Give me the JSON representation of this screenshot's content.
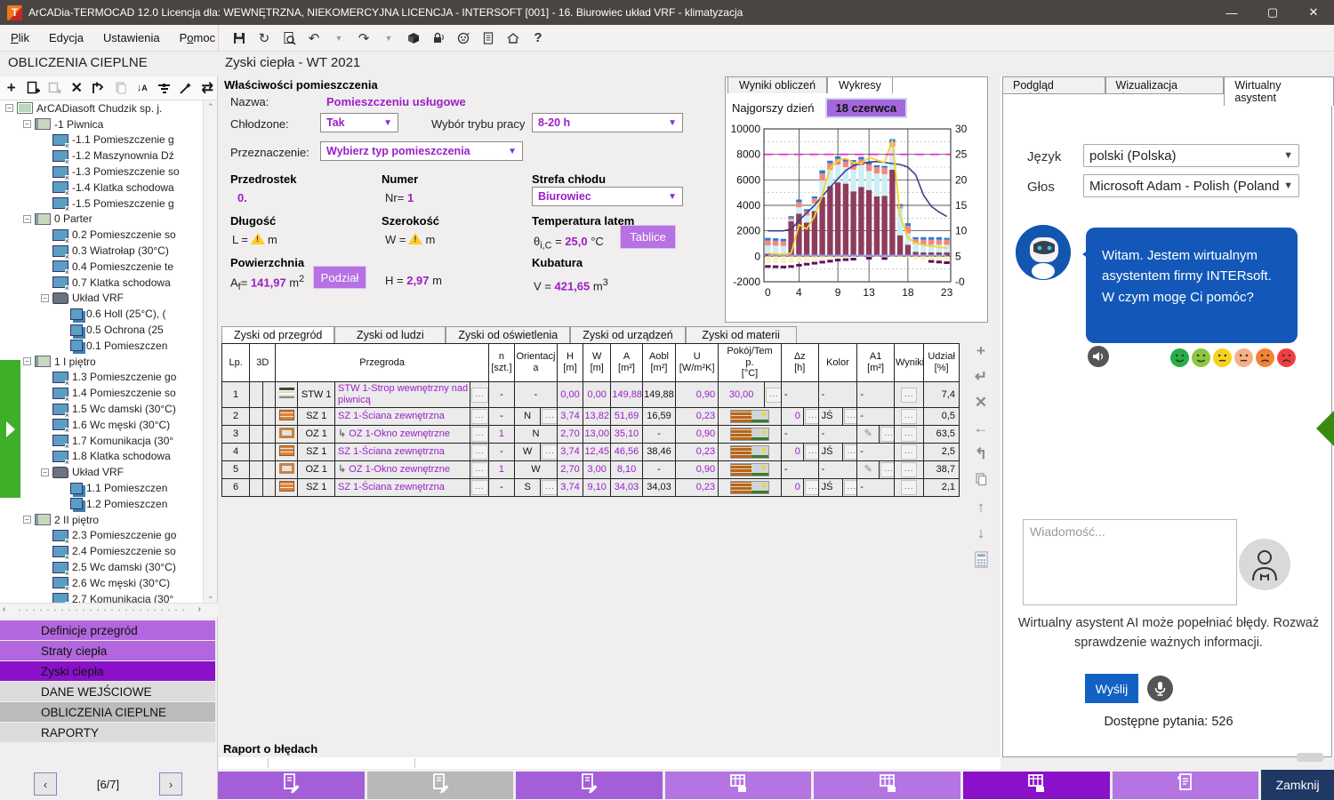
{
  "window": {
    "title": "ArCADia-TERMOCAD 12.0 Licencja dla: WEWNĘTRZNA, NIEKOMERCYJNA LICENCJA - INTERSOFT [001] - 16. Biurowiec układ VRF - klimatyzacja"
  },
  "menubar": [
    {
      "label": "Plik",
      "underline": 0
    },
    {
      "label": "Edycja",
      "underline": null
    },
    {
      "label": "Ustawienia",
      "underline": null
    },
    {
      "label": "Pomoc",
      "underline": 1
    }
  ],
  "main_toolbar": [
    "save-icon",
    "refresh-icon",
    "print-preview-icon",
    "undo-icon",
    "undo-dropdown-icon",
    "redo-icon",
    "redo-dropdown-icon",
    "package-icon",
    "lock-signal-icon",
    "robot-icon",
    "clipboard-icon",
    "home-sync-icon",
    "help-icon"
  ],
  "sidebar": {
    "header": "OBLICZENIA CIEPLNE",
    "tree_toolbar": [
      "add-icon",
      "add-document-icon",
      "add-copy-icon",
      "delete-icon",
      "paste-icon",
      "copy-disabled-icon",
      "sort-icon",
      "levels-icon",
      "wizard-icon",
      "sync-icon"
    ],
    "tree": [
      {
        "d": 0,
        "t": "building",
        "label": "ArCADiasoft Chudzik sp. j.",
        "exp": true
      },
      {
        "d": 1,
        "t": "storey",
        "label": "-1 Piwnica",
        "exp": true
      },
      {
        "d": 2,
        "t": "room",
        "label": "-1.1 Pomieszczenie g"
      },
      {
        "d": 2,
        "t": "room",
        "label": "-1.2 Maszynownia Dź"
      },
      {
        "d": 2,
        "t": "room",
        "label": "-1.3 Pomieszczenie so"
      },
      {
        "d": 2,
        "t": "room",
        "label": "-1.4 Klatka schodowa"
      },
      {
        "d": 2,
        "t": "room",
        "label": "-1.5 Pomieszczenie g"
      },
      {
        "d": 1,
        "t": "storey",
        "label": "0 Parter",
        "exp": true
      },
      {
        "d": 2,
        "t": "room",
        "label": "0.2 Pomieszczenie so"
      },
      {
        "d": 2,
        "t": "room",
        "label": "0.3 Wiatrołap (30°C)"
      },
      {
        "d": 2,
        "t": "room",
        "label": "0.4 Pomieszczenie te"
      },
      {
        "d": 2,
        "t": "room",
        "label": "0.7 Klatka schodowa"
      },
      {
        "d": 2,
        "t": "vrf-group",
        "label": "Układ VRF",
        "exp": true
      },
      {
        "d": 3,
        "t": "vrf-room",
        "label": "0.6 Holl (25°C), ("
      },
      {
        "d": 3,
        "t": "vrf-room",
        "label": "0.5 Ochrona (25"
      },
      {
        "d": 3,
        "t": "vrf-room",
        "label": "0.1 Pomieszczen"
      },
      {
        "d": 1,
        "t": "storey",
        "label": "1 I piętro",
        "exp": true
      },
      {
        "d": 2,
        "t": "room",
        "label": "1.3 Pomieszczenie go"
      },
      {
        "d": 2,
        "t": "room",
        "label": "1.4 Pomieszczenie so"
      },
      {
        "d": 2,
        "t": "room",
        "label": "1.5 Wc damski (30°C)"
      },
      {
        "d": 2,
        "t": "room",
        "label": "1.6 Wc męski (30°C)"
      },
      {
        "d": 2,
        "t": "room",
        "label": "1.7 Komunikacja (30°"
      },
      {
        "d": 2,
        "t": "room",
        "label": "1.8 Klatka schodowa"
      },
      {
        "d": 2,
        "t": "vrf-group",
        "label": "Układ VRF",
        "exp": true
      },
      {
        "d": 3,
        "t": "vrf-room",
        "label": "1.1 Pomieszczen"
      },
      {
        "d": 3,
        "t": "vrf-room",
        "label": "1.2 Pomieszczen"
      },
      {
        "d": 1,
        "t": "storey",
        "label": "2 II piętro",
        "exp": true
      },
      {
        "d": 2,
        "t": "room",
        "label": "2.3 Pomieszczenie go"
      },
      {
        "d": 2,
        "t": "room",
        "label": "2.4 Pomieszczenie so"
      },
      {
        "d": 2,
        "t": "room",
        "label": "2.5 Wc damski (30°C)"
      },
      {
        "d": 2,
        "t": "room",
        "label": "2.6 Wc męski (30°C)"
      },
      {
        "d": 2,
        "t": "room",
        "label": "2.7 Komunikacja (30°"
      }
    ],
    "nav": [
      {
        "label": "Definicje przegród",
        "style": "purple"
      },
      {
        "label": "Straty ciepła",
        "style": "purple"
      },
      {
        "label": "Zyski ciepła",
        "style": "purple-dark"
      },
      {
        "label": "DANE WEJŚCIOWE",
        "style": "gray"
      },
      {
        "label": "OBLICZENIA CIEPLNE",
        "style": "gray-dark"
      },
      {
        "label": "RAPORTY",
        "style": "gray"
      }
    ],
    "pager": {
      "prev": "‹",
      "label": "[6/7]",
      "next": "›"
    }
  },
  "header": {
    "page_title": "Zyski ciepła - WT 2021"
  },
  "properties": {
    "section_title": "Właściwości pomieszczenia",
    "nazwa_label": "Nazwa:",
    "nazwa_value": "Pomieszczeniu usługowe",
    "chlodzone_label": "Chłodzone:",
    "chlodzone_value": "Tak",
    "tryb_label": "Wybór trybu pracy",
    "tryb_value": "8-20 h",
    "przeznaczenie_label": "Przeznaczenie:",
    "przeznaczenie_value": "Wybierz typ pomieszczenia",
    "przedrostek_label": "Przedrostek",
    "przedrostek_value": "0.",
    "numer_label": "Numer",
    "numer_prefix": "Nr=",
    "numer_value": "1",
    "strefa_label": "Strefa chłodu",
    "strefa_value": "Biurowiec",
    "dlugosc_label": "Długość",
    "dlugosc_prefix": "L =",
    "dlugosc_unit": "m",
    "szerokosc_label": "Szerokość",
    "szerokosc_prefix": "W =",
    "szerokosc_unit": "m",
    "temp_label": "Temperatura latem",
    "temp_value": "25,0",
    "temp_unit": "°C",
    "tablice_button": "Tablice",
    "powierzchnia_label": "Powierzchnia",
    "powierzchnia_value": "141,97",
    "podzial_button": "Podział",
    "h_prefix": "H =",
    "h_value": "2,97",
    "h_unit": "m",
    "kubatura_label": "Kubatura",
    "kubatura_prefix": "V =",
    "kubatura_value": "421,65"
  },
  "chart_panel": {
    "tabs": [
      "Wyniki obliczeń",
      "Wykresy"
    ],
    "active_tab": "Wykresy",
    "worst_day_label": "Najgorszy dzień",
    "worst_day_value": "18 czerwca",
    "chart_data": {
      "type": "bar",
      "x_hours": [
        0,
        1,
        2,
        3,
        4,
        5,
        6,
        7,
        8,
        9,
        10,
        11,
        12,
        13,
        14,
        15,
        16,
        17,
        18,
        19,
        20,
        21,
        22,
        23
      ],
      "x_ticks": [
        0,
        4,
        9,
        13,
        18,
        23
      ],
      "ylim_left": [
        -2000,
        10000
      ],
      "left_ticks": [
        "10000",
        "8000",
        "6000",
        "4000",
        "2000",
        "0",
        "-2000"
      ],
      "ylim_right": [
        0,
        30
      ],
      "right_ticks": [
        "30",
        "25",
        "20",
        "15",
        "10",
        "5",
        "-0"
      ],
      "grid": true,
      "series_bars": [
        {
          "name": "zyski-maroon",
          "color": "#8e3c5d",
          "values": [
            200,
            200,
            200,
            2750,
            3350,
            2650,
            3550,
            4650,
            5500,
            5800,
            5700,
            5100,
            5450,
            5200,
            4700,
            4750,
            6800,
            1650,
            900,
            350,
            300,
            300,
            300,
            300
          ]
        },
        {
          "name": "zyski-cyan",
          "color": "#cdeef5",
          "values": [
            650,
            630,
            600,
            100,
            500,
            550,
            600,
            1300,
            1300,
            1400,
            1300,
            1700,
            1700,
            1500,
            1800,
            1700,
            1800,
            2100,
            900,
            650,
            600,
            600,
            600,
            600
          ]
        },
        {
          "name": "zyski-salmon",
          "color": "#f4887e",
          "values": [
            400,
            390,
            380,
            150,
            400,
            350,
            400,
            550,
            500,
            450,
            450,
            550,
            450,
            500,
            500,
            500,
            350,
            200,
            600,
            350,
            400,
            400,
            400,
            400
          ]
        },
        {
          "name": "zyski-blue",
          "color": "#2f78d4",
          "values": [
            200,
            190,
            190,
            150,
            200,
            150,
            150,
            250,
            200,
            200,
            150,
            200,
            200,
            150,
            150,
            150,
            250,
            150,
            200,
            150,
            200,
            200,
            200,
            150
          ]
        }
      ],
      "negative_bars": {
        "name": "straty-pale-yellow",
        "color": "#f8f3c6",
        "values": [
          -520,
          -540,
          -560,
          -520,
          -460,
          -420,
          -380,
          -320,
          -260,
          -180,
          -120,
          -60,
          -40,
          -40,
          -40,
          -40,
          -40,
          -60,
          -120,
          -250,
          -350,
          -420,
          -470,
          -500
        ]
      },
      "negative_markers": {
        "name": "straty-dark-purple",
        "color": "#5c1060",
        "values": [
          -800,
          -820,
          -840,
          -800,
          -700,
          -620,
          -540,
          -460,
          -380,
          -300,
          -260,
          -220,
          0,
          -150,
          0,
          -170,
          0,
          0,
          0,
          0,
          0,
          -400,
          -450,
          -500
        ]
      },
      "series_lines": [
        {
          "name": "temp-lavender",
          "color": "#9aa0e8",
          "width": 1.4,
          "axis": "right",
          "values": [
            5.2,
            5.2,
            5.2,
            5.2,
            5.2,
            5.2,
            5.2,
            5.2,
            5.2,
            5.2,
            5.2,
            5.2,
            5.2,
            5.2,
            5.2,
            5.2,
            5.2,
            5.2,
            5.2,
            5.2,
            5.2,
            5.2,
            5.2,
            5.2
          ]
        },
        {
          "name": "temp-navy",
          "color": "#3b3f8f",
          "width": 1.6,
          "axis": "right",
          "values": [
            10,
            10,
            10,
            10.3,
            12,
            13.5,
            15,
            16.8,
            18.5,
            20.2,
            21.8,
            22.8,
            23.2,
            23.5,
            23.6,
            23.4,
            23.2,
            23,
            22.5,
            21,
            17,
            14.8,
            13.7,
            12.8
          ]
        },
        {
          "name": "temp-yellow",
          "color": "#f0d52e",
          "width": 1.8,
          "axis": "right",
          "values": [
            5.6,
            5.5,
            5.4,
            5.6,
            11.2,
            10.4,
            12.8,
            17,
            22.3,
            23.8,
            24.2,
            23.4,
            23.2,
            24.4,
            23.9,
            23.4,
            27.8,
            13,
            8.6,
            7.6,
            7.2,
            7,
            6.8,
            6.6
          ]
        }
      ],
      "setpoint": {
        "name": "setpoint-25",
        "value": 25,
        "axis": "right",
        "color": "#f531cf",
        "style": "dashed"
      }
    }
  },
  "table_panel": {
    "tabs": [
      "Zyski od przegród",
      "Zyski od ludzi",
      "Zyski od oświetlenia",
      "Zyski od urządzeń",
      "Zyski od materii"
    ],
    "active_tab": "Zyski od przegród",
    "columns": [
      "Lp.",
      "3D",
      "Przegroda",
      "n\n[szt.]",
      "Orientacj\na",
      "H\n[m]",
      "W\n[m]",
      "A\n[m²]",
      "Aobl\n[m²]",
      "U\n[W/m²K]",
      "Pokój/Tem\np.\n[°C]",
      "Δz\n[h]",
      "Kolor",
      "A1\n[m²]",
      "Wyniki",
      "Udział\n[%]"
    ],
    "rows": [
      {
        "lp": "1",
        "icon": "floor",
        "code": "STW 1",
        "indent": false,
        "name": "STW 1-Strop wewnętrzny nad piwnicą",
        "n": "-",
        "orient": "-",
        "orient_dots": false,
        "h": "0,00",
        "w": "0,00",
        "a": "149,88",
        "aobl": "149,88",
        "u": "0,90",
        "room": "30,00",
        "room_texture": false,
        "room_dots": true,
        "dz": "-",
        "dz_dots": false,
        "kolor": "-",
        "kolor_dots": false,
        "a1": "-",
        "a1_pencil": false,
        "udzial": "7,4"
      },
      {
        "lp": "2",
        "icon": "brick",
        "code": "SZ 1",
        "indent": false,
        "name": "SZ 1-Ściana zewnętrzna",
        "n": "-",
        "orient": "N",
        "orient_dots": true,
        "h": "3,74",
        "w": "13,82",
        "a": "51,69",
        "aobl": "16,59",
        "u": "0,23",
        "room": "",
        "room_texture": true,
        "room_dots": false,
        "dz": "0",
        "dz_dots": true,
        "kolor": "JŚ",
        "kolor_dots": true,
        "a1": "-",
        "a1_pencil": false,
        "udzial": "0,5"
      },
      {
        "lp": "3",
        "icon": "window",
        "code": "OZ 1",
        "indent": true,
        "name": "OZ 1-Okno zewnętrzne",
        "n": "1",
        "orient": "N",
        "orient_dots": false,
        "h": "2,70",
        "w": "13,00",
        "a": "35,10",
        "aobl": "-",
        "u": "0,90",
        "room": "",
        "room_texture": true,
        "room_dots": false,
        "dz": "-",
        "dz_dots": false,
        "kolor": "-",
        "kolor_dots": false,
        "a1": "",
        "a1_pencil": true,
        "udzial": "63,5"
      },
      {
        "lp": "4",
        "icon": "brick",
        "code": "SZ 1",
        "indent": false,
        "name": "SZ 1-Ściana zewnętrzna",
        "n": "-",
        "orient": "W",
        "orient_dots": true,
        "h": "3,74",
        "w": "12,45",
        "a": "46,56",
        "aobl": "38,46",
        "u": "0,23",
        "room": "",
        "room_texture": true,
        "room_dots": false,
        "dz": "0",
        "dz_dots": true,
        "kolor": "JŚ",
        "kolor_dots": true,
        "a1": "-",
        "a1_pencil": false,
        "udzial": "2,5"
      },
      {
        "lp": "5",
        "icon": "window",
        "code": "OZ 1",
        "indent": true,
        "name": "OZ 1-Okno zewnętrzne",
        "n": "1",
        "orient": "W",
        "orient_dots": false,
        "h": "2,70",
        "w": "3,00",
        "a": "8,10",
        "aobl": "-",
        "u": "0,90",
        "room": "",
        "room_texture": true,
        "room_dots": false,
        "dz": "-",
        "dz_dots": false,
        "kolor": "-",
        "kolor_dots": false,
        "a1": "",
        "a1_pencil": true,
        "udzial": "38,7"
      },
      {
        "lp": "6",
        "icon": "brick",
        "code": "SZ 1",
        "indent": false,
        "name": "SZ 1-Ściana zewnętrzna",
        "n": "-",
        "orient": "S",
        "orient_dots": true,
        "h": "3,74",
        "w": "9,10",
        "a": "34,03",
        "aobl": "34,03",
        "u": "0,23",
        "room": "",
        "room_texture": true,
        "room_dots": false,
        "dz": "0",
        "dz_dots": true,
        "kolor": "JŚ",
        "kolor_dots": true,
        "a1": "-",
        "a1_pencil": false,
        "udzial": "2,1"
      }
    ],
    "row_tools": [
      "add-row-icon",
      "insert-row-icon",
      "delete-row-icon",
      "arrow-left-icon",
      "branch-icon",
      "copy-icon",
      "move-up-icon",
      "move-down-icon",
      "calculator-icon"
    ]
  },
  "error_report": {
    "label": "Raport o błędach"
  },
  "assistant": {
    "tabs": [
      "Podgląd projektu",
      "Wizualizacja gbXML",
      "Wirtualny asystent"
    ],
    "active_tab": "Wirtualny asystent",
    "language_label": "Język",
    "language_value": "polski (Polska)",
    "voice_label": "Głos",
    "voice_value": "Microsoft Adam - Polish (Poland",
    "greeting": "Witam. Jestem wirtualnym asystentem firmy INTERsoft. W czym mogę Ci pomóc?",
    "message_placeholder": "Wiadomość...",
    "disclaimer": "Wirtualny asystent AI może popełniać błędy. Rozważ sprawdzenie ważnych informacji.",
    "send_button": "Wyślij",
    "questions_info": "Dostępne pytania: 526",
    "moods": [
      {
        "name": "very-happy",
        "color": "#27ae46"
      },
      {
        "name": "happy",
        "color": "#8dc63f"
      },
      {
        "name": "neutral",
        "color": "#f7d21b"
      },
      {
        "name": "meh",
        "color": "#f5b183"
      },
      {
        "name": "sad",
        "color": "#f58233"
      },
      {
        "name": "very-sad",
        "color": "#ef4040"
      }
    ]
  },
  "bottom_bar": {
    "buttons": [
      {
        "icon": "report-edit-icon",
        "style": "purple"
      },
      {
        "icon": "report-edit-icon",
        "style": "gray"
      },
      {
        "icon": "report-edit-icon",
        "style": "purple"
      },
      {
        "icon": "table-calc-icon",
        "style": "purple-light"
      },
      {
        "icon": "table-calc-icon",
        "style": "purple-light"
      },
      {
        "icon": "table-calc-icon",
        "style": "purple-dark"
      },
      {
        "icon": "doc-check-icon",
        "style": "purple-light"
      }
    ],
    "close_label": "Zamknij"
  },
  "colors": {
    "accent_purple": "#9d4fd6",
    "accent_purple_dark": "#8a10c9",
    "value_purple": "#9b1fc8",
    "chat_blue": "#1358b8",
    "titlebar": "#4a4542",
    "close_navy": "#1f3864",
    "flag_green": "#3fae29"
  }
}
